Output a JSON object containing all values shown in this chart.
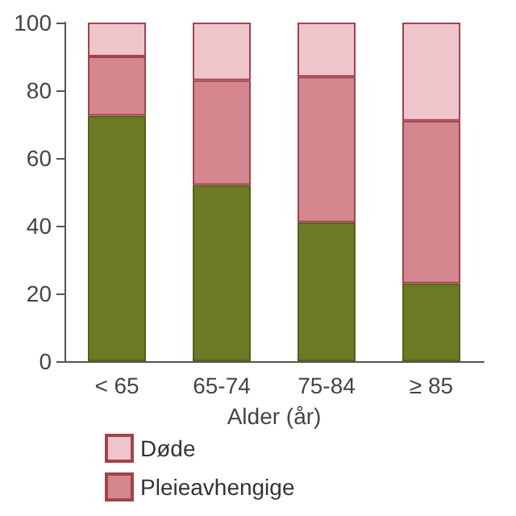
{
  "chart_data": {
    "type": "bar",
    "stacked": true,
    "categories": [
      "< 65",
      "65-74",
      "75-84",
      "≥ 85"
    ],
    "xlabel": "Alder (år)",
    "series": [
      {
        "color": "#6b7a23",
        "values": [
          72.5,
          52,
          41,
          23
        ]
      },
      {
        "name": "Pleieavhengige",
        "color": "#d4878f",
        "values": [
          17.5,
          31,
          43,
          48
        ]
      },
      {
        "name": "Døde",
        "color": "#efc5cc",
        "values": [
          10,
          17,
          16,
          29
        ]
      }
    ],
    "ylim": [
      0,
      100
    ],
    "yticks": [
      0,
      20,
      40,
      60,
      80,
      100
    ],
    "grid": false,
    "legend": "bottom"
  }
}
